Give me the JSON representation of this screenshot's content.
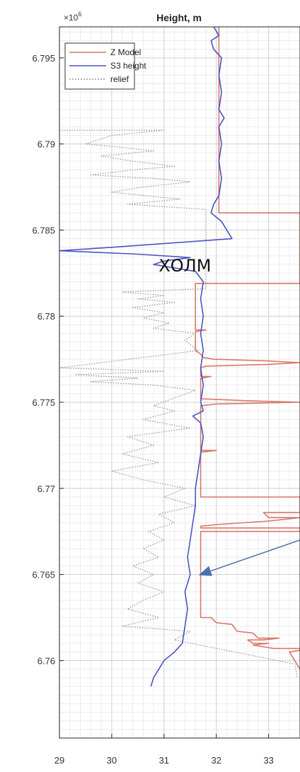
{
  "chart_data": {
    "type": "line",
    "title": "Height, m",
    "y_exponent_label": "×10",
    "y_exponent_power": "6",
    "xlim": [
      29,
      33.6
    ],
    "ylim": [
      6.7555,
      6.7968
    ],
    "x_ticks": [
      29,
      30,
      31,
      32,
      33
    ],
    "x_tick_labels": [
      "29",
      "30",
      "31",
      "32",
      "33"
    ],
    "y_ticks": [
      6.76,
      6.765,
      6.77,
      6.775,
      6.78,
      6.785,
      6.79,
      6.795
    ],
    "y_tick_labels": [
      "6.76",
      "6.765",
      "6.77",
      "6.775",
      "6.78",
      "6.785",
      "6.79",
      "6.795"
    ],
    "grid": true,
    "legend_position": "top-left",
    "series": [
      {
        "name": "Z Model",
        "color": "#d9776a",
        "style": "solid",
        "points": [
          [
            32.05,
            6.7968
          ],
          [
            32.05,
            6.786
          ],
          [
            33.6,
            6.786
          ],
          [
            33.6,
            6.7819
          ],
          [
            31.6,
            6.7819
          ],
          [
            31.6,
            6.7792
          ],
          [
            31.8,
            6.7792
          ],
          [
            31.6,
            6.7791
          ],
          [
            31.6,
            6.778
          ],
          [
            31.7,
            6.7778
          ],
          [
            31.75,
            6.7776
          ],
          [
            31.95,
            6.7775
          ],
          [
            33.0,
            6.7774
          ],
          [
            33.6,
            6.7773
          ],
          [
            33.0,
            6.7772
          ],
          [
            31.8,
            6.7771
          ],
          [
            31.7,
            6.777
          ],
          [
            31.7,
            6.7765
          ],
          [
            31.9,
            6.7765
          ],
          [
            31.7,
            6.7764
          ],
          [
            31.7,
            6.7752
          ],
          [
            32.5,
            6.7751
          ],
          [
            33.6,
            6.775
          ],
          [
            32.0,
            6.7749
          ],
          [
            31.7,
            6.7748
          ],
          [
            31.7,
            6.7722
          ],
          [
            32.0,
            6.7722
          ],
          [
            31.7,
            6.7721
          ],
          [
            31.7,
            6.7695
          ],
          [
            33.6,
            6.7695
          ],
          [
            33.6,
            6.7686
          ],
          [
            32.9,
            6.7686
          ],
          [
            33.0,
            6.7683
          ],
          [
            33.6,
            6.7683
          ],
          [
            33.0,
            6.7681
          ],
          [
            32.5,
            6.768
          ],
          [
            32.0,
            6.7679
          ],
          [
            31.7,
            6.7678
          ],
          [
            31.7,
            6.7677
          ],
          [
            33.6,
            6.7677
          ],
          [
            33.6,
            6.7675
          ],
          [
            31.7,
            6.7675
          ],
          [
            31.7,
            6.7625
          ],
          [
            31.9,
            6.7625
          ],
          [
            32.0,
            6.7622
          ],
          [
            32.3,
            6.7621
          ],
          [
            32.4,
            6.7617
          ],
          [
            32.7,
            6.7616
          ],
          [
            32.8,
            6.7613
          ],
          [
            33.2,
            6.7613
          ],
          [
            32.9,
            6.7612
          ],
          [
            32.6,
            6.7612
          ],
          [
            32.7,
            6.761
          ],
          [
            33.0,
            6.761
          ],
          [
            32.7,
            6.7609
          ],
          [
            33.1,
            6.7607
          ],
          [
            33.6,
            6.7607
          ],
          [
            33.6,
            6.7606
          ],
          [
            33.4,
            6.7605
          ],
          [
            33.5,
            6.76
          ],
          [
            33.6,
            6.7595
          ]
        ]
      },
      {
        "name": "S3 height",
        "color": "#4b54c2",
        "style": "solid",
        "points": [
          [
            31.95,
            6.7968
          ],
          [
            32.05,
            6.7963
          ],
          [
            31.9,
            6.796
          ],
          [
            31.95,
            6.7955
          ],
          [
            32.1,
            6.795
          ],
          [
            32.05,
            6.794
          ],
          [
            32.1,
            6.793
          ],
          [
            32.05,
            6.792
          ],
          [
            32.15,
            6.7915
          ],
          [
            32.05,
            6.791
          ],
          [
            32.1,
            6.79
          ],
          [
            32.05,
            6.789
          ],
          [
            32.1,
            6.788
          ],
          [
            32.05,
            6.787
          ],
          [
            31.95,
            6.7865
          ],
          [
            31.9,
            6.786
          ],
          [
            32.1,
            6.7855
          ],
          [
            32.2,
            6.785
          ],
          [
            32.3,
            6.7845
          ],
          [
            30.0,
            6.784
          ],
          [
            29.0,
            6.7838
          ],
          [
            30.5,
            6.7836
          ],
          [
            31.5,
            6.7834
          ],
          [
            31.0,
            6.7832
          ],
          [
            30.8,
            6.783
          ],
          [
            31.2,
            6.7828
          ],
          [
            31.6,
            6.7826
          ],
          [
            31.75,
            6.782
          ],
          [
            31.7,
            6.781
          ],
          [
            31.75,
            6.78
          ],
          [
            31.7,
            6.779
          ],
          [
            31.75,
            6.778
          ],
          [
            31.7,
            6.777
          ],
          [
            31.75,
            6.776
          ],
          [
            31.7,
            6.775
          ],
          [
            31.75,
            6.7745
          ],
          [
            31.55,
            6.7742
          ],
          [
            31.7,
            6.7738
          ],
          [
            31.75,
            6.773
          ],
          [
            31.7,
            6.772
          ],
          [
            31.65,
            6.771
          ],
          [
            31.6,
            6.77
          ],
          [
            31.6,
            6.769
          ],
          [
            31.55,
            6.768
          ],
          [
            31.5,
            6.767
          ],
          [
            31.45,
            6.766
          ],
          [
            31.5,
            6.765
          ],
          [
            31.4,
            6.764
          ],
          [
            31.45,
            6.763
          ],
          [
            31.4,
            6.762
          ],
          [
            31.35,
            6.761
          ],
          [
            31.2,
            6.7605
          ],
          [
            31.0,
            6.76
          ],
          [
            30.9,
            6.7595
          ],
          [
            30.8,
            6.759
          ],
          [
            30.75,
            6.7585
          ]
        ]
      },
      {
        "name": "relief",
        "color": "#9a9a9a",
        "style": "dotted",
        "points": [
          [
            29.0,
            6.7908
          ],
          [
            31.0,
            6.7908
          ],
          [
            30.0,
            6.7905
          ],
          [
            29.5,
            6.79
          ],
          [
            30.2,
            6.7898
          ],
          [
            30.8,
            6.7896
          ],
          [
            29.8,
            6.7893
          ],
          [
            30.4,
            6.789
          ],
          [
            31.2,
            6.7887
          ],
          [
            30.4,
            6.7885
          ],
          [
            29.6,
            6.7882
          ],
          [
            30.8,
            6.788
          ],
          [
            31.5,
            6.7878
          ],
          [
            30.6,
            6.7875
          ],
          [
            30.0,
            6.7872
          ],
          [
            31.3,
            6.7868
          ],
          [
            30.3,
            6.7865
          ],
          [
            31.8,
            6.7862
          ],
          [
            31.8,
            6.7816
          ],
          [
            30.2,
            6.7814
          ],
          [
            31.0,
            6.7812
          ],
          [
            30.5,
            6.781
          ],
          [
            31.2,
            6.7808
          ],
          [
            30.4,
            6.7805
          ],
          [
            31.0,
            6.7802
          ],
          [
            30.6,
            6.7799
          ],
          [
            31.1,
            6.7796
          ],
          [
            30.8,
            6.7793
          ],
          [
            31.6,
            6.779
          ],
          [
            31.4,
            6.7786
          ],
          [
            31.65,
            6.778
          ],
          [
            29.0,
            6.777
          ],
          [
            31.0,
            6.7768
          ],
          [
            29.3,
            6.7766
          ],
          [
            30.5,
            6.7764
          ],
          [
            29.6,
            6.7762
          ],
          [
            30.8,
            6.776
          ],
          [
            31.6,
            6.7757
          ],
          [
            30.8,
            6.7748
          ],
          [
            31.2,
            6.7745
          ],
          [
            30.6,
            6.774
          ],
          [
            31.5,
            6.7735
          ],
          [
            30.3,
            6.773
          ],
          [
            30.8,
            6.7725
          ],
          [
            30.2,
            6.772
          ],
          [
            30.9,
            6.7715
          ],
          [
            30.0,
            6.771
          ],
          [
            30.6,
            6.7705
          ],
          [
            31.4,
            6.77
          ],
          [
            31.0,
            6.7695
          ],
          [
            31.6,
            6.769
          ],
          [
            30.9,
            6.7685
          ],
          [
            31.2,
            6.768
          ],
          [
            30.7,
            6.7675
          ],
          [
            31.0,
            6.767
          ],
          [
            30.6,
            6.7665
          ],
          [
            30.9,
            6.766
          ],
          [
            30.4,
            6.7655
          ],
          [
            30.8,
            6.765
          ],
          [
            30.5,
            6.7645
          ],
          [
            31.0,
            6.764
          ],
          [
            30.6,
            6.7635
          ],
          [
            30.3,
            6.763
          ],
          [
            30.9,
            6.7625
          ],
          [
            30.2,
            6.762
          ],
          [
            31.5,
            6.7617
          ],
          [
            31.2,
            6.7612
          ],
          [
            33.5,
            6.7598
          ],
          [
            33.55,
            6.759
          ]
        ]
      }
    ],
    "annotations": [
      {
        "text": "ХОЛМ",
        "x": 31.4,
        "y": 6.7826
      },
      {
        "type": "arrow",
        "x_from": 33.6,
        "y_from": 6.767,
        "x_to": 31.7,
        "y_to": 6.765
      }
    ]
  }
}
